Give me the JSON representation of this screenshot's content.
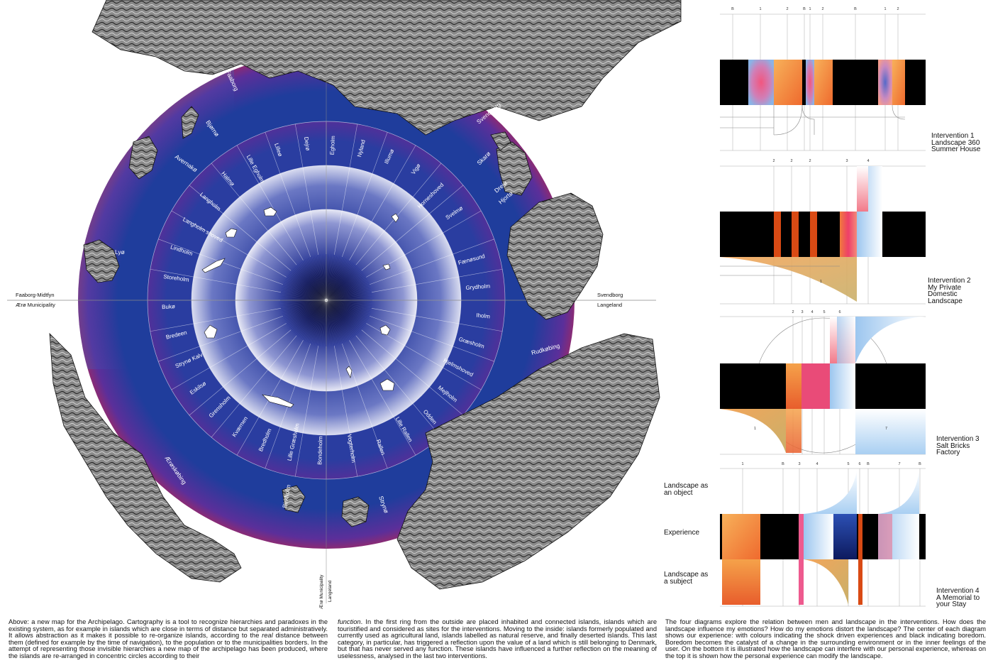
{
  "map": {
    "divider_labels": {
      "left_top": "Faaborg-Midtfyn",
      "left_bottom": "Ærø Municipality",
      "right_top": "Svendborg",
      "right_bottom": "Langeland",
      "bottom_a": "Ærø Municipality",
      "bottom_b": "Langeland"
    },
    "outer_islands": [
      "Faaborg",
      "Bjørnø",
      "Avernakø",
      "Lyø",
      "Svendborg",
      "Skarø",
      "Drejø",
      "Hjortø",
      "Rudkøbing",
      "Strynø",
      "Birkholm",
      "Ærøskøbing"
    ],
    "ring2_islands": [
      "Fænøsund",
      "Grydholm",
      "Iholm",
      "Græsholm",
      "Hjelmshoved",
      "Mejlholm",
      "Odden",
      "Lille Rallen",
      "Rallen",
      "Vogterholm",
      "Bondeholm",
      "Lille Græsholm",
      "Bredholm",
      "Kværnen",
      "Grensholm",
      "Eskilsø",
      "Strynø Kalv",
      "Bredeen",
      "Bukø",
      "Storeholm",
      "Lindholm",
      "Langholm shoved",
      "Langholm",
      "Halmø",
      "Lille Egholm",
      "Lilleø",
      "Dejrø",
      "Egholm",
      "Nyland",
      "Illumø",
      "Vigø",
      "Horneshoved",
      "Svelmø"
    ]
  },
  "interventions": [
    {
      "lines": [
        "Intervention 1",
        "Landscape 360",
        "Summer House"
      ]
    },
    {
      "lines": [
        "Intervention 2",
        "My Private",
        "Domestic",
        "Landscape"
      ]
    },
    {
      "lines": [
        "Intervention 3",
        "Salt Bricks",
        "Factory"
      ]
    },
    {
      "lines": [
        "Intervention 4",
        "A Memorial to",
        "your Stay"
      ]
    }
  ],
  "diagram1_ticks": [
    "B",
    "1",
    "2",
    "B",
    "1",
    "2",
    "B",
    "1",
    "2"
  ],
  "diagram2_ticks": [
    "2",
    "2",
    "2",
    "3",
    "4"
  ],
  "diagram2_region": "1",
  "diagram3_ticks": [
    "2",
    "3",
    "4",
    "5",
    "6"
  ],
  "diagram3_regions": [
    "1",
    "7"
  ],
  "diagram4_ticks": [
    "1",
    "B",
    "3",
    "4",
    "5",
    "6",
    "B",
    "7",
    "B"
  ],
  "side_labels": {
    "object": "Landscape as an object",
    "experience": "Experience",
    "subject": "Landscape as a subject"
  },
  "captions": {
    "left_pre": "Above: a new map for the Archipelago. Cartography is a tool to recognize hierarchies and paradoxes in the existing system, as for example in islands which are close in terms of distance but separated administratively. It allows abstraction as it makes it possible to re-organize islands, according to the ",
    "left_em": "real",
    "left_post": " distance between them (defined for example by the time of navigation), to the population or to the municipalities borders. In the attempt of representing those invisible hierarchies a new map of the archipelago has been produced, where the islands are re-arranged in concentric circles according to their",
    "middle_em": "function",
    "middle_post": ". In the first ring from the outside are placed inhabited and connected islands, islands which are touristified and considered as sites for the interventions. Moving to the inside: islands formerly populated and currently used as agricultural land, islands labelled as natural reserve, and finally deserted islands. This last category, in particular, has triggered a reflection upon the value of a land which is still belonging to Denmark, but that has never served any function. These islands have influenced a further reflection on the meaning of uselessness, analysed in the last two interventions.",
    "right": "The four diagrams explore the relation between men and landscape in the interventions. How does the landscape influence my emotions? How do my emotions distort the landscape? The center of each diagram shows our experience: with colours indicating the shock driven experiences and black indicating boredom. Boredom becomes the catalyst of a change in the surrounding environment or in the inner feelings of the user. On the bottom it is illustrated how the landscape can interfere with our personal experience, whereas on the top it is shown how the personal experience can modify the landscape."
  },
  "colors": {
    "red": "#e8232b",
    "blue": "#23419e",
    "navy": "#0d1440",
    "orange": "#f28a2e",
    "pink": "#ee4f86",
    "dark_orange": "#d94a14"
  }
}
